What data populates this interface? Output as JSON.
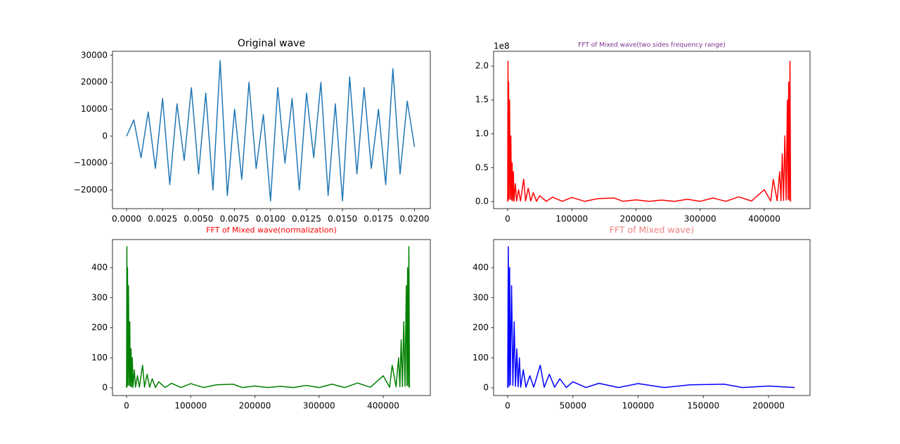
{
  "chart_data": [
    {
      "type": "line",
      "title": "Original wave",
      "title_color": "#000000",
      "color": "#1f77b4",
      "x": [
        0,
        0.0005,
        0.001,
        0.0015,
        0.002,
        0.0025,
        0.003,
        0.0035,
        0.004,
        0.0045,
        0.005,
        0.0055,
        0.006,
        0.0065,
        0.007,
        0.0075,
        0.008,
        0.0085,
        0.009,
        0.0095,
        0.01,
        0.0105,
        0.011,
        0.0115,
        0.012,
        0.0125,
        0.013,
        0.0135,
        0.014,
        0.0145,
        0.015,
        0.0155,
        0.016,
        0.0165,
        0.017,
        0.0175,
        0.018,
        0.0185,
        0.019,
        0.0195,
        0.02
      ],
      "values": [
        0,
        6000,
        -8000,
        9000,
        -12000,
        14000,
        -18000,
        12000,
        -9000,
        18000,
        -14000,
        16000,
        -20000,
        28000,
        -22000,
        10000,
        -16000,
        20000,
        -12000,
        8000,
        -24000,
        18000,
        -10000,
        14000,
        -20000,
        16000,
        -8000,
        20000,
        -22000,
        12000,
        -24000,
        22000,
        -14000,
        18000,
        -12000,
        10000,
        -18000,
        25000,
        -14000,
        13000,
        -4000
      ],
      "xlim": [
        -0.00098,
        0.0211
      ],
      "ylim": [
        -26900,
        31500
      ],
      "xticks": [
        {
          "value": 0,
          "label": "0.0000"
        },
        {
          "value": 0.0025,
          "label": "0.0025"
        },
        {
          "value": 0.005,
          "label": "0.0050"
        },
        {
          "value": 0.0075,
          "label": "0.0075"
        },
        {
          "value": 0.01,
          "label": "0.0100"
        },
        {
          "value": 0.0125,
          "label": "0.0125"
        },
        {
          "value": 0.015,
          "label": "0.0150"
        },
        {
          "value": 0.0175,
          "label": "0.0175"
        },
        {
          "value": 0.02,
          "label": "0.0200"
        }
      ],
      "yticks": [
        {
          "value": -20000,
          "label": "−20000"
        },
        {
          "value": -10000,
          "label": "−10000"
        },
        0,
        10000,
        20000,
        30000
      ]
    },
    {
      "type": "line",
      "title": "FFT of Mixed wave(two sides frequency range)",
      "title_color": "#7b2d8e",
      "color": "#ff0000",
      "x": [
        0,
        500,
        1000,
        1500,
        2000,
        3000,
        4000,
        5000,
        6000,
        7000,
        8000,
        9000,
        10000,
        12000,
        14000,
        17000,
        20000,
        25000,
        28000,
        32000,
        36000,
        40000,
        45000,
        50000,
        60000,
        70000,
        85000,
        100000,
        120000,
        140000,
        166000,
        180000,
        200000,
        220000,
        240000,
        260000,
        280000,
        300000,
        320000,
        340000,
        360000,
        380000,
        400000,
        410000,
        414000,
        420000,
        424000,
        426000,
        428000,
        430000,
        432000,
        434000,
        436000,
        437000,
        438000,
        439000,
        440000,
        441000
      ],
      "values": [
        0,
        207270000,
        2205000,
        176400000,
        4410000,
        149940000,
        3528000,
        97020000,
        2205000,
        57330000,
        1323000,
        44100000,
        882000,
        26460000,
        882000,
        17640000,
        882000,
        33075000,
        882000,
        19845000,
        882000,
        13230000,
        441000,
        8820000,
        441000,
        6615000,
        441000,
        6174000,
        441000,
        4410000,
        5292000,
        441000,
        2646000,
        441000,
        2205000,
        441000,
        3528000,
        441000,
        5292000,
        441000,
        7056000,
        882000,
        17640000,
        882000,
        33075000,
        1323000,
        44100000,
        1323000,
        70560000,
        1764000,
        97020000,
        2205000,
        149940000,
        3528000,
        176400000,
        2205000,
        207270000,
        0
      ],
      "xlim": [
        -21918,
        471233
      ],
      "ylim": [
        -10360000,
        221760000
      ],
      "xticks": [
        0,
        100000,
        200000,
        300000,
        400000
      ],
      "yticks": [
        {
          "value": 0,
          "label": "0.0"
        },
        {
          "value": 50000000,
          "label": "0.5"
        },
        {
          "value": 100000000,
          "label": "1.0"
        },
        {
          "value": 150000000,
          "label": "1.5"
        },
        {
          "value": 200000000,
          "label": "2.0"
        }
      ],
      "y_offset_label": "1e8"
    },
    {
      "type": "line",
      "title": "FFT of Mixed wave(normalization)",
      "title_color": "#ff0000",
      "color": "#008000",
      "x": [
        0,
        500,
        1000,
        1500,
        2000,
        3000,
        4000,
        5000,
        6000,
        7000,
        8000,
        9000,
        10000,
        12000,
        14000,
        17000,
        20000,
        25000,
        28000,
        32000,
        36000,
        40000,
        45000,
        50000,
        60000,
        70000,
        85000,
        100000,
        120000,
        140000,
        166000,
        180000,
        200000,
        220000,
        240000,
        260000,
        280000,
        300000,
        320000,
        340000,
        360000,
        380000,
        400000,
        410000,
        414000,
        420000,
        424000,
        426000,
        428000,
        430000,
        432000,
        434000,
        436000,
        437000,
        438000,
        439000,
        440000,
        441000
      ],
      "values": [
        0,
        470,
        5,
        400,
        10,
        340,
        8,
        220,
        5,
        130,
        3,
        100,
        2,
        60,
        2,
        40,
        2,
        75,
        2,
        45,
        2,
        30,
        1,
        20,
        1,
        15,
        1,
        14,
        1,
        10,
        12,
        1,
        6,
        1,
        5,
        1,
        8,
        1,
        12,
        1,
        16,
        2,
        40,
        2,
        75,
        3,
        100,
        3,
        160,
        4,
        220,
        5,
        340,
        8,
        400,
        5,
        470,
        0
      ],
      "xlim": [
        -21918,
        473425
      ],
      "ylim": [
        -25.7,
        493.6
      ],
      "xticks": [
        0,
        100000,
        200000,
        300000,
        400000
      ],
      "yticks": [
        0,
        100,
        200,
        300,
        400
      ]
    },
    {
      "type": "line",
      "title": "FFT of Mixed wave)",
      "title_color": "#f08080",
      "color": "#0000ff",
      "x": [
        0,
        500,
        1000,
        1500,
        2000,
        3000,
        4000,
        5000,
        6000,
        7000,
        8000,
        9000,
        10000,
        12000,
        14000,
        17000,
        20000,
        25000,
        28000,
        32000,
        36000,
        40000,
        45000,
        50000,
        60000,
        70000,
        85000,
        100000,
        120000,
        140000,
        166000,
        180000,
        200000,
        220000
      ],
      "values": [
        0,
        470,
        5,
        400,
        10,
        340,
        8,
        220,
        5,
        130,
        3,
        100,
        2,
        60,
        2,
        40,
        2,
        75,
        2,
        45,
        2,
        30,
        1,
        20,
        1,
        15,
        1,
        14,
        1,
        10,
        12,
        1,
        6,
        1
      ],
      "xlim": [
        -10782,
        231806
      ],
      "ylim": [
        -25.7,
        493.6
      ],
      "xticks": [
        0,
        50000,
        100000,
        150000,
        200000
      ],
      "yticks": [
        0,
        100,
        200,
        300,
        400
      ]
    }
  ]
}
